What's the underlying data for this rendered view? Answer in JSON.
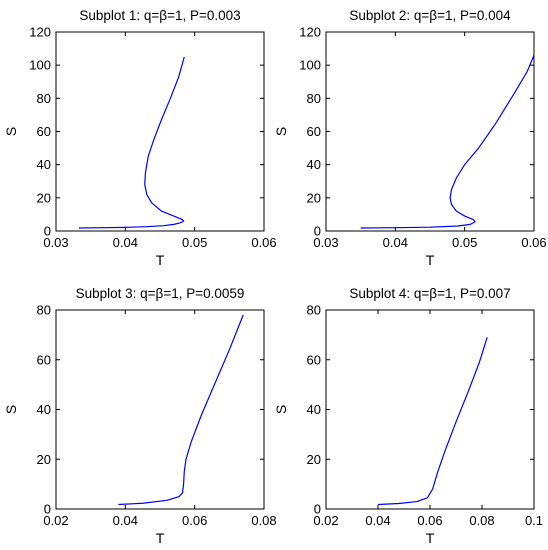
{
  "figure": {
    "background": "#ffffff",
    "line_color": "#0000ff"
  },
  "chart_data": [
    {
      "type": "line",
      "title": "Subplot 1: q=β=1, P=0.003",
      "xlabel": "T",
      "ylabel": "S",
      "xlim": [
        0.03,
        0.06
      ],
      "ylim": [
        0,
        120
      ],
      "xticks": [
        "0.03",
        "0.04",
        "0.05",
        "0.06"
      ],
      "yticks": [
        "0",
        "20",
        "40",
        "60",
        "80",
        "100",
        "120"
      ],
      "series": [
        {
          "color": "#0000ff",
          "x": [
            0.0333,
            0.037,
            0.04,
            0.043,
            0.0455,
            0.047,
            0.048,
            0.0484,
            0.0482,
            0.047,
            0.0452,
            0.0438,
            0.0431,
            0.0428,
            0.0429,
            0.0433,
            0.0441,
            0.0452,
            0.0465,
            0.0477,
            0.0485
          ],
          "y": [
            1.8,
            2.0,
            2.2,
            2.6,
            3.2,
            4.0,
            5.0,
            6.0,
            7.0,
            9.0,
            12.0,
            17.0,
            22.0,
            28.0,
            35.0,
            45.0,
            55.0,
            67.0,
            80.0,
            93.0,
            105.0
          ]
        }
      ],
      "grid": false
    },
    {
      "type": "line",
      "title": "Subplot 2: q=β=1, P=0.004",
      "xlabel": "T",
      "ylabel": "S",
      "xlim": [
        0.03,
        0.06
      ],
      "ylim": [
        0,
        120
      ],
      "xticks": [
        "0.03",
        "0.04",
        "0.05",
        "0.06"
      ],
      "yticks": [
        "0",
        "20",
        "40",
        "60",
        "80",
        "100",
        "120"
      ],
      "series": [
        {
          "color": "#0000ff",
          "x": [
            0.035,
            0.04,
            0.045,
            0.049,
            0.0508,
            0.0515,
            0.0512,
            0.05,
            0.0488,
            0.0481,
            0.0479,
            0.0481,
            0.0488,
            0.05,
            0.052,
            0.0545,
            0.057,
            0.059,
            0.06
          ],
          "y": [
            1.8,
            2.0,
            2.3,
            3.0,
            4.0,
            5.5,
            7.0,
            9.0,
            12.0,
            16.0,
            20.0,
            25.0,
            32.0,
            40.0,
            50.0,
            65.0,
            82.0,
            96.0,
            106.0
          ]
        }
      ],
      "grid": false
    },
    {
      "type": "line",
      "title": "Subplot 3: q=β=1, P=0.0059",
      "xlabel": "T",
      "ylabel": "S",
      "xlim": [
        0.02,
        0.08
      ],
      "ylim": [
        0,
        80
      ],
      "xticks": [
        "0.02",
        "0.04",
        "0.06",
        "0.08"
      ],
      "yticks": [
        "0",
        "20",
        "40",
        "60",
        "80"
      ],
      "series": [
        {
          "color": "#0000ff",
          "x": [
            0.038,
            0.045,
            0.052,
            0.0555,
            0.0565,
            0.0568,
            0.057,
            0.0575,
            0.059,
            0.062,
            0.066,
            0.07,
            0.074
          ],
          "y": [
            1.8,
            2.3,
            3.5,
            5.0,
            6.5,
            10.0,
            15.0,
            20.0,
            27.0,
            38.0,
            51.0,
            64.0,
            78.0
          ]
        }
      ],
      "grid": false
    },
    {
      "type": "line",
      "title": "Subplot 4: q=β=1, P=0.007",
      "xlabel": "T",
      "ylabel": "S",
      "xlim": [
        0.02,
        0.1
      ],
      "ylim": [
        0,
        80
      ],
      "xticks": [
        "0.02",
        "0.04",
        "0.06",
        "0.08",
        "0.1"
      ],
      "yticks": [
        "0",
        "20",
        "40",
        "60",
        "80"
      ],
      "series": [
        {
          "color": "#0000ff",
          "x": [
            0.04,
            0.048,
            0.055,
            0.059,
            0.061,
            0.063,
            0.066,
            0.07,
            0.075,
            0.079,
            0.082
          ],
          "y": [
            1.8,
            2.2,
            3.0,
            4.5,
            8.0,
            15.0,
            24.0,
            35.0,
            48.0,
            59.0,
            69.0
          ]
        }
      ],
      "grid": false
    }
  ]
}
